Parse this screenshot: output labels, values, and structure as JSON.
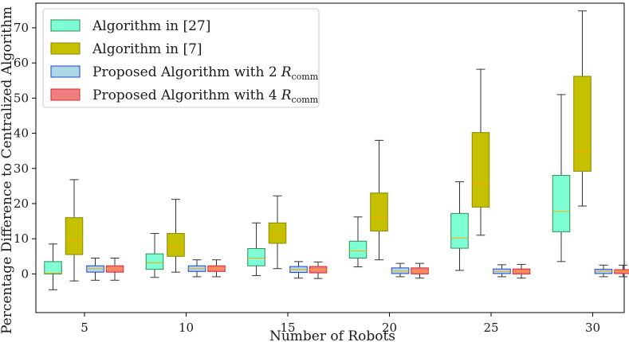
{
  "chart_data": {
    "type": "boxplot",
    "xlabel": "Number of Robots",
    "ylabel": "Percentage Difference to Centralized Algorithm",
    "categories": [
      "5",
      "10",
      "15",
      "20",
      "25",
      "30"
    ],
    "ylim": [
      -11,
      77
    ],
    "yticks": [
      0,
      10,
      20,
      30,
      40,
      50,
      60,
      70
    ],
    "legend_position": "upper-left",
    "series": [
      {
        "name": "Algorithm in [27]",
        "fill": "#7fffd4",
        "edge": "#2e8b57",
        "median_color": "#ffa500",
        "boxes": [
          {
            "whislo": -4.5,
            "q1": 0.0,
            "med": 0.2,
            "q3": 3.5,
            "whishi": 8.5
          },
          {
            "whislo": -1.0,
            "q1": 1.3,
            "med": 3.2,
            "q3": 5.7,
            "whishi": 11.5
          },
          {
            "whislo": -0.5,
            "q1": 2.3,
            "med": 4.5,
            "q3": 7.2,
            "whishi": 14.5
          },
          {
            "whislo": 2.0,
            "q1": 4.5,
            "med": 6.5,
            "q3": 9.3,
            "whishi": 16.2
          },
          {
            "whislo": 1.0,
            "q1": 7.3,
            "med": 10.2,
            "q3": 17.2,
            "whishi": 26.2
          },
          {
            "whislo": 3.5,
            "q1": 12.0,
            "med": 17.8,
            "q3": 28.0,
            "whishi": 51.0
          }
        ]
      },
      {
        "name": "Algorithm in [7]",
        "fill": "#c5c000",
        "edge": "#8a8600",
        "median_color": "#ffa500",
        "boxes": [
          {
            "whislo": -2.0,
            "q1": 5.5,
            "med": 9.5,
            "q3": 16.0,
            "whishi": 26.8
          },
          {
            "whislo": 0.5,
            "q1": 5.0,
            "med": 7.5,
            "q3": 11.5,
            "whishi": 21.2
          },
          {
            "whislo": 1.5,
            "q1": 8.7,
            "med": 11.0,
            "q3": 14.5,
            "whishi": 22.2
          },
          {
            "whislo": 4.0,
            "q1": 12.2,
            "med": 16.0,
            "q3": 23.0,
            "whishi": 38.0
          },
          {
            "whislo": 11.0,
            "q1": 19.0,
            "med": 25.5,
            "q3": 40.2,
            "whishi": 58.2
          },
          {
            "whislo": 19.3,
            "q1": 29.2,
            "med": 34.8,
            "q3": 56.2,
            "whishi": 74.8
          }
        ]
      },
      {
        "name": "Proposed Algorithm with 2",
        "name_math": "R",
        "name_sub": "comm",
        "fill": "#add8e6",
        "edge": "#1f3fd1",
        "median_color": "#ffa500",
        "boxes": [
          {
            "whislo": -1.8,
            "q1": 0.5,
            "med": 1.5,
            "q3": 2.3,
            "whishi": 4.5
          },
          {
            "whislo": -0.8,
            "q1": 0.7,
            "med": 1.5,
            "q3": 2.3,
            "whishi": 4.0
          },
          {
            "whislo": -1.2,
            "q1": 0.4,
            "med": 1.3,
            "q3": 2.1,
            "whishi": 3.5
          },
          {
            "whislo": -0.8,
            "q1": 0.1,
            "med": 0.8,
            "q3": 1.7,
            "whishi": 3.0
          },
          {
            "whislo": -0.8,
            "q1": 0.1,
            "med": 0.7,
            "q3": 1.4,
            "whishi": 2.6
          },
          {
            "whislo": -0.8,
            "q1": 0.1,
            "med": 0.8,
            "q3": 1.3,
            "whishi": 2.5
          }
        ]
      },
      {
        "name": "Proposed Algorithm with 4",
        "name_math": "R",
        "name_sub": "comm",
        "fill": "#f08080",
        "edge": "#d62728",
        "median_color": "#ffa500",
        "boxes": [
          {
            "whislo": -1.8,
            "q1": 0.5,
            "med": 1.5,
            "q3": 2.3,
            "whishi": 4.5
          },
          {
            "whislo": -0.8,
            "q1": 0.7,
            "med": 1.5,
            "q3": 2.3,
            "whishi": 4.0
          },
          {
            "whislo": -1.3,
            "q1": 0.3,
            "med": 1.2,
            "q3": 2.1,
            "whishi": 3.4
          },
          {
            "whislo": -1.2,
            "q1": 0.0,
            "med": 0.8,
            "q3": 1.7,
            "whishi": 3.0
          },
          {
            "whislo": -1.2,
            "q1": 0.0,
            "med": 0.8,
            "q3": 1.4,
            "whishi": 2.7
          },
          {
            "whislo": -0.8,
            "q1": 0.1,
            "med": 0.8,
            "q3": 1.2,
            "whishi": 2.5
          }
        ]
      }
    ]
  }
}
